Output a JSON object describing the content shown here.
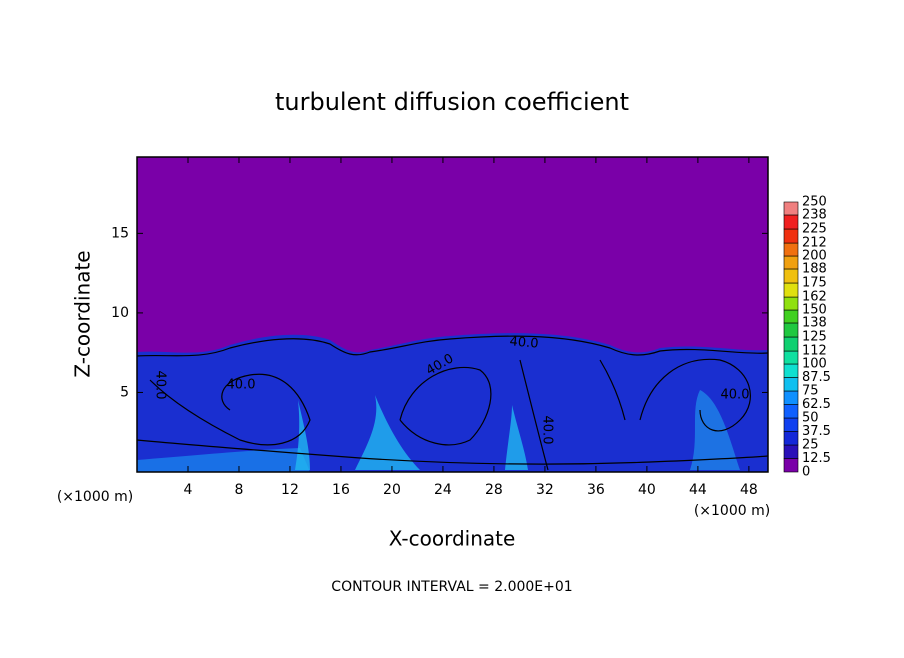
{
  "chart_data": {
    "type": "contour",
    "title": "turbulent diffusion coefficient",
    "x_label": "X-coordinate",
    "y_label": "Z-coordinate",
    "x_unit": "(×1000 m)",
    "footnote": "CONTOUR INTERVAL = 2.000E+01",
    "xlim": [
      0,
      49.5
    ],
    "ylim": [
      0,
      19.8
    ],
    "xticks": [
      4,
      8,
      12,
      16,
      20,
      24,
      28,
      32,
      36,
      40,
      44,
      48
    ],
    "yticks": [
      5,
      10,
      15
    ],
    "contour_label": {
      "value": 40,
      "label": "40.0"
    },
    "colorbar": {
      "levels": [
        0,
        12.5,
        25,
        37.5,
        50,
        62.5,
        75,
        87.5,
        100,
        112,
        125,
        138,
        150,
        162,
        175,
        188,
        200,
        212,
        225,
        238,
        250
      ],
      "colors": [
        "#7a00a8",
        "#2a10b8",
        "#1428d8",
        "#1040f0",
        "#1060ff",
        "#1090ff",
        "#10c0f0",
        "#10e0d0",
        "#10e0a0",
        "#10d070",
        "#20c840",
        "#40d020",
        "#90e010",
        "#e0e010",
        "#f0c010",
        "#f0a010",
        "#f07010",
        "#f03010",
        "#f02020",
        "#f08080"
      ]
    }
  }
}
